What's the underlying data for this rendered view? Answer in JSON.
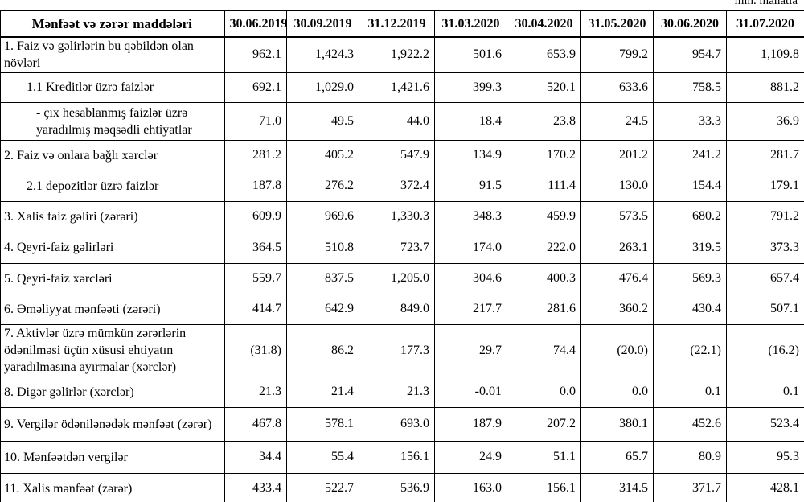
{
  "note": "mln. manatla",
  "table": {
    "header": [
      "Mənfəət və zərər maddələri",
      "30.06.2019",
      "30.09.2019",
      "31.12.2019",
      "31.03.2020",
      "30.04.2020",
      "31.05.2020",
      "30.06.2020",
      "31.07.2020"
    ],
    "rows": [
      [
        "1. Faiz və gəlirlərin bu qəbildən olan növləri",
        "962.1",
        "1,424.3",
        "1,922.2",
        "501.6",
        "653.9",
        "799.2",
        "954.7",
        "1,109.8"
      ],
      [
        "1.1 Kreditlər üzrə faizlər",
        "692.1",
        "1,029.0",
        "1,421.6",
        "399.3",
        "520.1",
        "633.6",
        "758.5",
        "881.2"
      ],
      [
        "-  çıx hesablanmış faizlər üzrə yaradılmış məqsədli ehtiyatlar",
        "71.0",
        "49.5",
        "44.0",
        "18.4",
        "23.8",
        "24.5",
        "33.3",
        "36.9"
      ],
      [
        "2. Faiz və onlara bağlı xərclər",
        "281.2",
        "405.2",
        "547.9",
        "134.9",
        "170.2",
        "201.2",
        "241.2",
        "281.7"
      ],
      [
        "2.1 depozitlər üzrə faizlər",
        "187.8",
        "276.2",
        "372.4",
        "91.5",
        "111.4",
        "130.0",
        "154.4",
        "179.1"
      ],
      [
        "3. Xalis faiz gəliri (zərəri)",
        "609.9",
        "969.6",
        "1,330.3",
        "348.3",
        "459.9",
        "573.5",
        "680.2",
        "791.2"
      ],
      [
        "4. Qeyri-faiz gəlirləri",
        "364.5",
        "510.8",
        "723.7",
        "174.0",
        "222.0",
        "263.1",
        "319.5",
        "373.3"
      ],
      [
        "5. Qeyri-faiz xərcləri",
        "559.7",
        "837.5",
        "1,205.0",
        "304.6",
        "400.3",
        "476.4",
        "569.3",
        "657.4"
      ],
      [
        "6. Əməliyyat mənfəəti (zərəri)",
        "414.7",
        "642.9",
        "849.0",
        "217.7",
        "281.6",
        "360.2",
        "430.4",
        "507.1"
      ],
      [
        "7. Aktivlər üzrə mümkün zərərlərin ödənilməsi üçün xüsusi ehtiyatın yaradılmasına ayırmalar (xərclər)",
        "(31.8)",
        "86.2",
        "177.3",
        "29.7",
        "74.4",
        "(20.0)",
        "(22.1)",
        "(16.2)"
      ],
      [
        "8. Digər gəlirlər (xərclər)",
        "21.3",
        "21.4",
        "21.3",
        "-0.01",
        "0.0",
        "0.0",
        "0.1",
        "0.1"
      ],
      [
        "9. Vergilər ödənilənədək mənfəət (zərər)",
        "467.8",
        "578.1",
        "693.0",
        "187.9",
        "207.2",
        "380.1",
        "452.6",
        "523.4"
      ],
      [
        "10. Mənfəətdən vergilər",
        "34.4",
        "55.4",
        "156.1",
        "24.9",
        "51.1",
        "65.7",
        "80.9",
        "95.3"
      ],
      [
        "11. Xalis mənfəət (zərər)",
        "433.4",
        "522.7",
        "536.9",
        "163.0",
        "156.1",
        "314.5",
        "371.7",
        "428.1"
      ]
    ]
  }
}
